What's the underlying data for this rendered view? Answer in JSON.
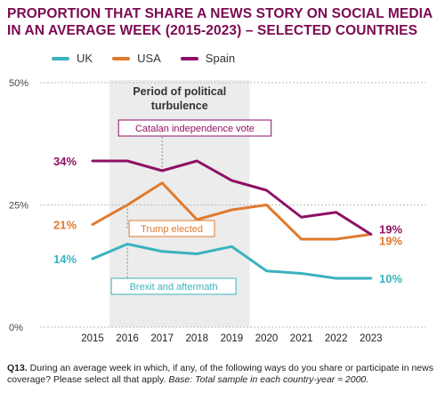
{
  "title": "PROPORTION THAT SHARE A NEWS STORY ON SOCIAL MEDIA IN AN AVERAGE WEEK (2015-2023) – SELECTED COUNTRIES",
  "footnote": {
    "label": "Q13.",
    "question": " During an average week in which, if any, of the following ways do you share or participate in news coverage? Please select all that apply. ",
    "base": "Base: Total sample in each country-year ≈ 2000."
  },
  "colors": {
    "UK": "#3ab3bd",
    "USA": "#e07a2c",
    "Spain": "#8e1165",
    "shade": "#ececec",
    "title": "#7b0a52"
  },
  "chart_data": {
    "type": "line",
    "categories": [
      "2015",
      "2016",
      "2017",
      "2018",
      "2019",
      "2020",
      "2021",
      "2022",
      "2023"
    ],
    "series": [
      {
        "name": "UK",
        "values": [
          14,
          17,
          15.5,
          15,
          16.5,
          11.5,
          11,
          10,
          10
        ]
      },
      {
        "name": "USA",
        "values": [
          21,
          25,
          29.5,
          22,
          24,
          25,
          18,
          18,
          19
        ]
      },
      {
        "name": "Spain",
        "values": [
          34,
          34,
          32,
          34,
          30,
          28,
          22.5,
          23.5,
          19
        ]
      }
    ],
    "ylim": [
      0,
      50
    ],
    "ytick_labels": [
      "0%",
      "25%",
      "50%"
    ],
    "start_labels": {
      "UK": "14%",
      "USA": "21%",
      "Spain": "34%"
    },
    "end_labels": {
      "UK": "10%",
      "USA": "19%",
      "Spain": "19%"
    },
    "shaded_region": {
      "from": "2016",
      "to": "2019",
      "label_line1": "Period of political",
      "label_line2": "turbulence"
    },
    "annotations": [
      {
        "text": "Catalan independence vote",
        "series": "Spain",
        "x": "2017"
      },
      {
        "text": "Trump elected",
        "series": "USA",
        "x": "2016"
      },
      {
        "text": "Brexit and aftermath",
        "series": "UK",
        "x": "2016"
      }
    ]
  }
}
